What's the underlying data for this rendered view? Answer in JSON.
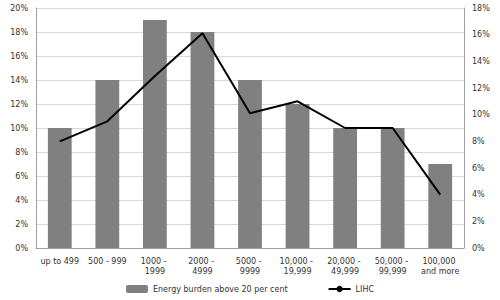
{
  "chart_data": {
    "type": "bar",
    "categories": [
      "up to 499",
      "500 - 999",
      "1000 - 1999",
      "2000 - 4999",
      "5000 - 9999",
      "10,000 - 19,999",
      "20,000 - 49,999",
      "50,000 - 99,999",
      "100,000 and more"
    ],
    "series": [
      {
        "name": "Energy burden above 20 per cent",
        "type": "bar",
        "color": "#808080",
        "values": [
          10,
          14,
          19,
          18,
          14,
          12,
          10,
          10,
          7
        ]
      },
      {
        "name": "LIHC",
        "type": "line",
        "color": "#000000",
        "axis": "y2",
        "values": [
          8,
          9.5,
          12.9,
          16.1,
          10.1,
          11,
          9,
          9,
          4
        ]
      }
    ],
    "ylim": [
      0,
      20
    ],
    "yticks": [
      {
        "value": 0,
        "label": "0%"
      },
      {
        "value": 2,
        "label": "2%"
      },
      {
        "value": 4,
        "label": "4%"
      },
      {
        "value": 6,
        "label": "6%"
      },
      {
        "value": 8,
        "label": "8%"
      },
      {
        "value": 10,
        "label": "10%"
      },
      {
        "value": 12,
        "label": "12%"
      },
      {
        "value": 14,
        "label": "14%"
      },
      {
        "value": 16,
        "label": "16%"
      },
      {
        "value": 18,
        "label": "18%"
      },
      {
        "value": 20,
        "label": "20%"
      }
    ],
    "y2lim": [
      0,
      18
    ],
    "y2ticks": [
      {
        "value": 0,
        "label": "0%"
      },
      {
        "value": 2,
        "label": "2%"
      },
      {
        "value": 4,
        "label": "4%"
      },
      {
        "value": 6,
        "label": "6%"
      },
      {
        "value": 8,
        "label": "8%"
      },
      {
        "value": 10,
        "label": "10%"
      },
      {
        "value": 12,
        "label": "12%"
      },
      {
        "value": 14,
        "label": "14%"
      },
      {
        "value": 16,
        "label": "16%"
      },
      {
        "value": 18,
        "label": "18%"
      }
    ],
    "grid": true,
    "legend": "bottom"
  }
}
